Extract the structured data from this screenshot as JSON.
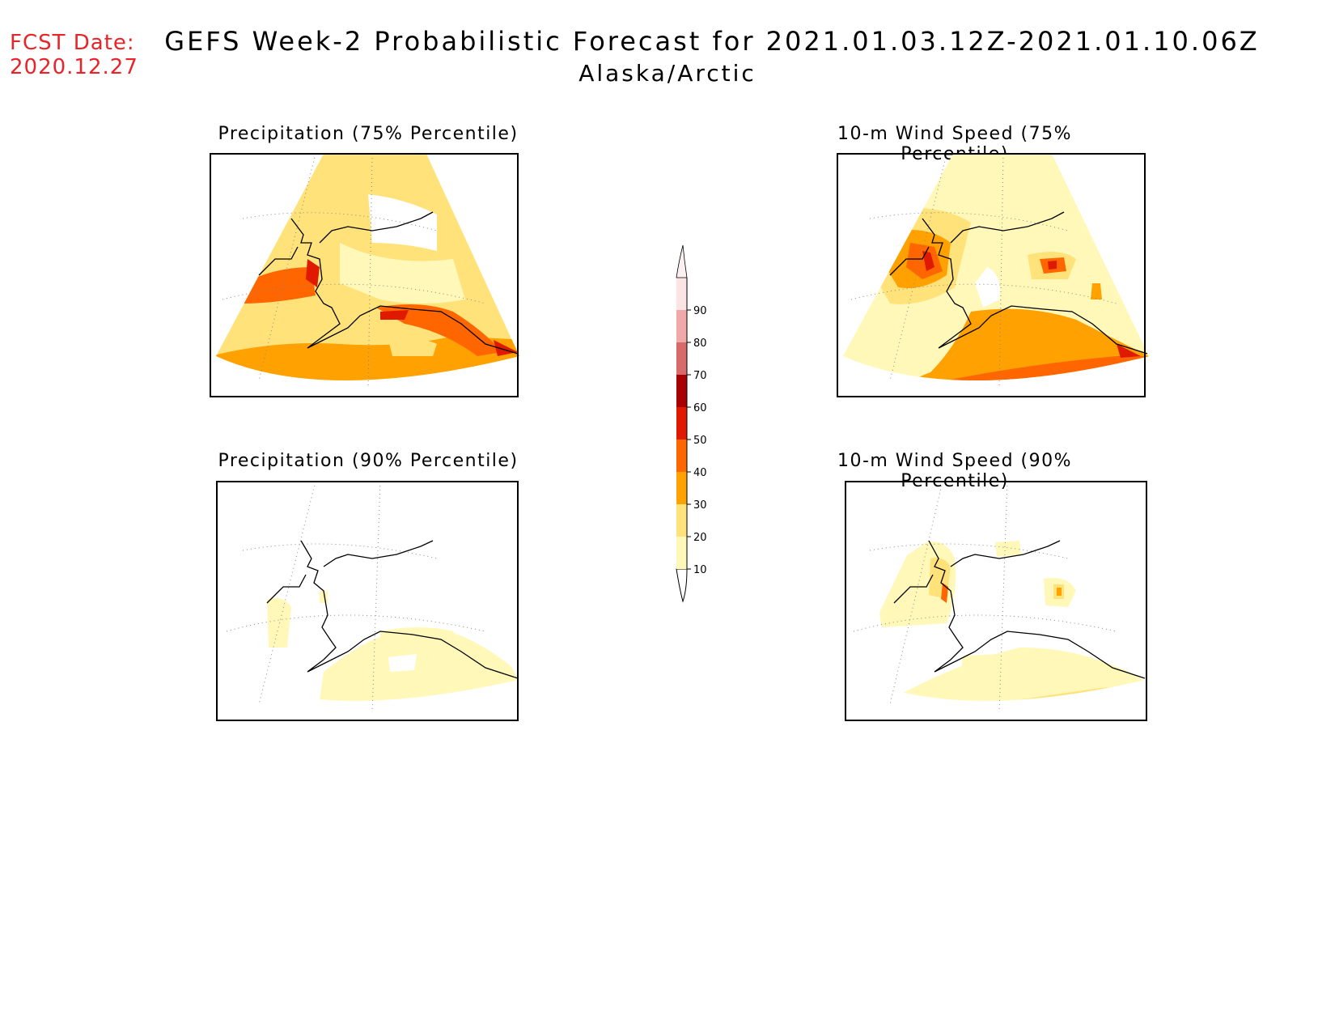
{
  "header": {
    "fcst_label": "FCST Date:",
    "fcst_date": "2020.12.27",
    "title": "GEFS Week-2 Probabilistic Forecast for 2021.01.03.12Z-2021.01.10.06Z",
    "region": "Alaska/Arctic"
  },
  "panels": [
    {
      "id": "precip75",
      "title": "Precipitation (75% Percentile)"
    },
    {
      "id": "wind75",
      "title": "10-m Wind Speed (75% Percentile)"
    },
    {
      "id": "precip90",
      "title": "Precipitation (90% Percentile)"
    },
    {
      "id": "wind90",
      "title": "10-m Wind Speed (90% Percentile)"
    }
  ],
  "colorbar": {
    "ticks": [
      "10",
      "20",
      "30",
      "40",
      "50",
      "60",
      "70",
      "80",
      "90"
    ],
    "colors": [
      "#fff8b8",
      "#ffe37a",
      "#ffa100",
      "#ff6600",
      "#e01a00",
      "#a80000",
      "#d86a6a",
      "#f0a8a8",
      "#fce4e4"
    ]
  }
}
